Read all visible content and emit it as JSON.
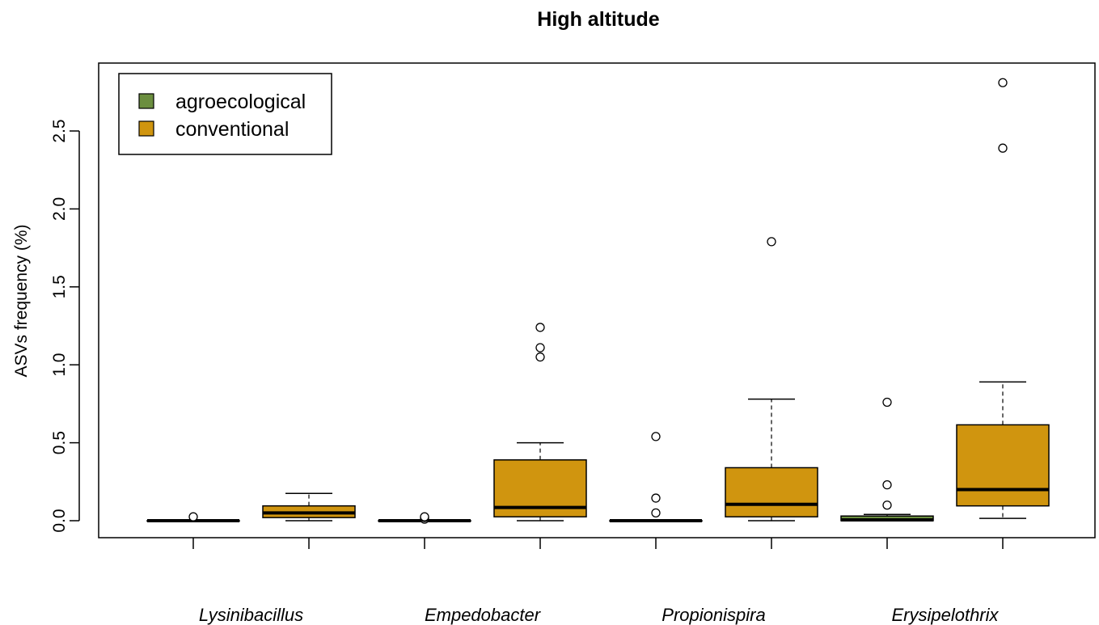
{
  "colors": {
    "agroecological": "#6b8e3f",
    "conventional": "#d0950f",
    "stroke": "#000000"
  },
  "chart_data": {
    "type": "box",
    "title": "High altitude",
    "ylabel": "ASVs frequency (%)",
    "xlabel": "",
    "ylim": [
      -0.1,
      2.9
    ],
    "yticks": [
      0.0,
      0.5,
      1.0,
      1.5,
      2.0,
      2.5
    ],
    "ytick_labels": [
      "0.0",
      "0.5",
      "1.0",
      "1.5",
      "2.0",
      "2.5"
    ],
    "categories": [
      "Lysinibacillus",
      "Empedobacter",
      "Propionispira",
      "Erysipelothrix"
    ],
    "legend": {
      "position": "top-left",
      "entries": [
        "agroecological",
        "conventional"
      ]
    },
    "series": [
      {
        "name": "agroecological",
        "boxes": [
          {
            "category": "Lysinibacillus",
            "whisker_low": 0.0,
            "q1": 0.0,
            "median": 0.0,
            "q3": 0.0,
            "whisker_high": 0.0,
            "outliers": [
              0.025
            ]
          },
          {
            "category": "Empedobacter",
            "whisker_low": 0.0,
            "q1": 0.0,
            "median": 0.0,
            "q3": 0.0,
            "whisker_high": 0.0,
            "outliers": [
              0.01,
              0.02,
              0.025
            ]
          },
          {
            "category": "Propionispira",
            "whisker_low": 0.0,
            "q1": 0.0,
            "median": 0.0,
            "q3": 0.0,
            "whisker_high": 0.0,
            "outliers": [
              0.05,
              0.145,
              0.54
            ]
          },
          {
            "category": "Erysipelothrix",
            "whisker_low": 0.0,
            "q1": 0.0,
            "median": 0.005,
            "q3": 0.03,
            "whisker_high": 0.04,
            "outliers": [
              0.1,
              0.23,
              0.76
            ]
          }
        ]
      },
      {
        "name": "conventional",
        "boxes": [
          {
            "category": "Lysinibacillus",
            "whisker_low": 0.0,
            "q1": 0.02,
            "median": 0.05,
            "q3": 0.095,
            "whisker_high": 0.175,
            "outliers": []
          },
          {
            "category": "Empedobacter",
            "whisker_low": 0.0,
            "q1": 0.025,
            "median": 0.085,
            "q3": 0.39,
            "whisker_high": 0.5,
            "outliers": [
              1.05,
              1.11,
              1.24
            ]
          },
          {
            "category": "Propionispira",
            "whisker_low": 0.0,
            "q1": 0.025,
            "median": 0.105,
            "q3": 0.34,
            "whisker_high": 0.78,
            "outliers": [
              1.79
            ]
          },
          {
            "category": "Erysipelothrix",
            "whisker_low": 0.015,
            "q1": 0.095,
            "median": 0.2,
            "q3": 0.615,
            "whisker_high": 0.89,
            "outliers": [
              2.39,
              2.81
            ]
          }
        ]
      }
    ]
  }
}
